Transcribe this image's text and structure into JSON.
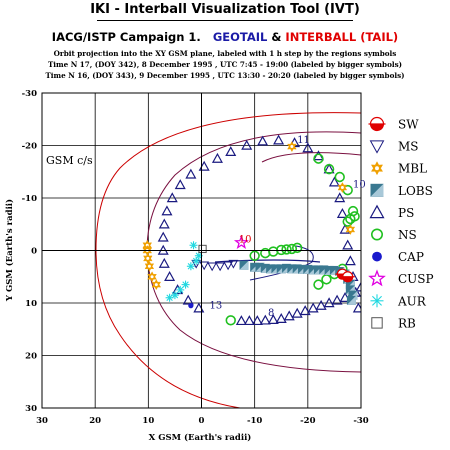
{
  "header": {
    "title": "IKI - Interball Visualization Tool (IVT)",
    "campaign_prefix": "IACG/ISTP Campaign 1.",
    "spacecraft_1": "GEOTAIL",
    "amp": "&",
    "spacecraft_2": "INTERBALL (TAIL)",
    "desc_line_1": "Orbit projection into the XY GSM plane, labeled with 1 h step by the regions symbols",
    "desc_line_2": "Time N 17, (DOY 342), 8 December 1995 , UTC 7:45 - 19:00 (labeled by bigger symbols)",
    "desc_line_3": "Time N 16, (DOY 343), 9 December 1995 , UTC 13:30 - 20:20 (labeled by bigger symbols)"
  },
  "colors": {
    "orbit_dark": "#1a1a80",
    "model_boundary": "#7a1040",
    "bow_shock": "#cc0000",
    "gsm_frame": "#000000",
    "sw": "#e00000",
    "ms": "#1a1a80",
    "mbl": "#f0a000",
    "lobs": "#3a7890",
    "ps": "#1a1a80",
    "ns": "#20c020",
    "cap": "#1a1acc",
    "cusp": "#e000e0",
    "aur": "#20d8e0",
    "rb": "#555555"
  },
  "chart_data": {
    "type": "scatter",
    "title": "",
    "frame_label": "GSM c/s",
    "xlabel": "X GSM (Earth's radii)",
    "ylabel": "Y GSM (Earth's radii)",
    "xlim": [
      30,
      -30
    ],
    "ylim": [
      -30,
      30
    ],
    "x_ticks": [
      "30",
      "20",
      "10",
      "0",
      "-10",
      "-20",
      "-30"
    ],
    "y_ticks": [
      "-30",
      "-20",
      "-10",
      "0",
      "10",
      "20",
      "30"
    ],
    "grid": true,
    "legend_position": "right",
    "legend": [
      {
        "code": "sw",
        "label": "SW",
        "symbol": "half-circle-red"
      },
      {
        "code": "ms",
        "label": "MS",
        "symbol": "triangle-down"
      },
      {
        "code": "mbl",
        "label": "MBL",
        "symbol": "star-6-orange"
      },
      {
        "code": "lobs",
        "label": "LOBS",
        "symbol": "square-half"
      },
      {
        "code": "ps",
        "label": "PS",
        "symbol": "triangle-up"
      },
      {
        "code": "ns",
        "label": "NS",
        "symbol": "circle-green"
      },
      {
        "code": "cap",
        "label": "CAP",
        "symbol": "dot-blue"
      },
      {
        "code": "cusp",
        "label": "CUSP",
        "symbol": "star-5-magenta"
      },
      {
        "code": "aur",
        "label": "AUR",
        "symbol": "asterisk-cyan"
      },
      {
        "code": "rb",
        "label": "RB",
        "symbol": "square-open"
      }
    ],
    "annotations": [
      {
        "text": "11",
        "x": -18,
        "y": -20.5,
        "color": "#1a1a80"
      },
      {
        "text": "10",
        "x": -28.5,
        "y": -12,
        "color": "#1a1a80"
      },
      {
        "text": "10",
        "x": -7,
        "y": -1.5,
        "color": "#e00000"
      },
      {
        "text": "13",
        "x": -1.5,
        "y": 11,
        "color": "#1a1a80"
      },
      {
        "text": "8",
        "x": -12.5,
        "y": 12.5,
        "color": "#1a1a80"
      }
    ],
    "series": [
      {
        "symbol": "ps",
        "values": [
          [
            -29.5,
            11
          ],
          [
            -29,
            8
          ],
          [
            -28.5,
            5
          ],
          [
            -28,
            2
          ],
          [
            -27.5,
            -1
          ],
          [
            -27,
            -4
          ],
          [
            -26.5,
            -7
          ],
          [
            -26,
            -10
          ],
          [
            -25,
            -13
          ],
          [
            -24,
            -15.5
          ],
          [
            -22,
            -18
          ],
          [
            -20,
            -19.5
          ],
          [
            -17.5,
            -20.5
          ],
          [
            -14.5,
            -21
          ],
          [
            -11.5,
            -20.8
          ],
          [
            -8.5,
            -20
          ],
          [
            -5.5,
            -18.8
          ],
          [
            -3,
            -17.5
          ],
          [
            -0.5,
            -16
          ],
          [
            2,
            -14.5
          ],
          [
            4,
            -12.5
          ],
          [
            5.5,
            -10
          ],
          [
            6.5,
            -7.5
          ],
          [
            7,
            -5
          ],
          [
            7.2,
            -2.5
          ],
          [
            7.2,
            0
          ],
          [
            7,
            2.5
          ],
          [
            6,
            5
          ],
          [
            4.5,
            7.5
          ],
          [
            2.5,
            9.5
          ],
          [
            0.5,
            11
          ]
        ]
      },
      {
        "symbol": "ps",
        "values": [
          [
            -30,
            7
          ],
          [
            -28.5,
            8
          ],
          [
            -27,
            9
          ],
          [
            -25.5,
            9.5
          ],
          [
            -24,
            10
          ],
          [
            -22.5,
            10.5
          ],
          [
            -21,
            11
          ],
          [
            -19.5,
            11.5
          ],
          [
            -18,
            12
          ],
          [
            -16.5,
            12.5
          ],
          [
            -15,
            13
          ],
          [
            -13.5,
            13.2
          ],
          [
            -12,
            13.3
          ],
          [
            -10.5,
            13.4
          ],
          [
            -9,
            13.4
          ],
          [
            -7.5,
            13.4
          ]
        ]
      },
      {
        "symbol": "ns",
        "values": [
          [
            -22,
            -17.5
          ],
          [
            -24,
            -15.5
          ],
          [
            -26,
            -14
          ],
          [
            -27.5,
            -11.5
          ],
          [
            -28.5,
            -7.5
          ],
          [
            -28.8,
            -6.5
          ],
          [
            -28,
            -6
          ],
          [
            -27.5,
            -5.5
          ],
          [
            -18,
            -0.5
          ],
          [
            -17,
            -0.3
          ],
          [
            -16,
            -0.2
          ],
          [
            -15,
            -0.1
          ],
          [
            -13.5,
            0.2
          ],
          [
            -12,
            0.5
          ],
          [
            -10,
            1
          ],
          [
            -5.5,
            13.3
          ],
          [
            -26.5,
            3.5
          ],
          [
            -25,
            4.5
          ],
          [
            -23.5,
            5.5
          ],
          [
            -22,
            6.5
          ]
        ]
      },
      {
        "symbol": "mbl",
        "values": [
          [
            10.2,
            -1
          ],
          [
            10.2,
            0
          ],
          [
            10.1,
            1.5
          ],
          [
            9.8,
            3
          ],
          [
            9.3,
            5
          ],
          [
            8.5,
            6.5
          ],
          [
            -17,
            -19.8
          ],
          [
            -26.5,
            -12
          ],
          [
            -28,
            -4
          ]
        ]
      },
      {
        "symbol": "lobs",
        "values": [
          [
            -8,
            2.8
          ],
          [
            -10,
            3.2
          ],
          [
            -11,
            3.2
          ],
          [
            -12,
            3.4
          ],
          [
            -13,
            3.5
          ],
          [
            -14,
            3.5
          ],
          [
            -15,
            3.5
          ],
          [
            -16,
            3.4
          ],
          [
            -17,
            3.5
          ],
          [
            -18,
            3.5
          ],
          [
            -19,
            3.6
          ],
          [
            -20,
            3.6
          ],
          [
            -21,
            3.7
          ],
          [
            -22,
            3.7
          ],
          [
            -23,
            3.7
          ],
          [
            -24,
            3.8
          ],
          [
            -25,
            3.8
          ],
          [
            -26,
            4
          ],
          [
            -27,
            4.5
          ],
          [
            -27.5,
            5.5
          ],
          [
            -28,
            6.5
          ],
          [
            -28,
            7.5
          ],
          [
            -28.5,
            8.5
          ],
          [
            -28.2,
            9.5
          ]
        ]
      },
      {
        "symbol": "ms",
        "values": [
          [
            1,
            2.5
          ],
          [
            -0.5,
            2.8
          ],
          [
            -2,
            3
          ],
          [
            -3.5,
            3
          ],
          [
            -5,
            2.8
          ],
          [
            -6,
            2.5
          ]
        ]
      },
      {
        "symbol": "aur",
        "values": [
          [
            1.5,
            -1
          ],
          [
            0.5,
            1
          ],
          [
            1,
            2
          ],
          [
            2,
            3
          ],
          [
            3,
            6.5
          ],
          [
            4,
            7.5
          ],
          [
            5,
            8.5
          ],
          [
            6,
            9
          ]
        ]
      },
      {
        "symbol": "cap",
        "values": [
          [
            2,
            10.5
          ]
        ]
      },
      {
        "symbol": "sw",
        "values": [
          [
            -26.5,
            4.5
          ],
          [
            -27.5,
            5
          ]
        ]
      },
      {
        "symbol": "cusp",
        "values": [
          [
            -7.5,
            -1.5
          ]
        ]
      },
      {
        "symbol": "rb",
        "values": [
          [
            -0.2,
            -0.3
          ]
        ]
      }
    ]
  }
}
